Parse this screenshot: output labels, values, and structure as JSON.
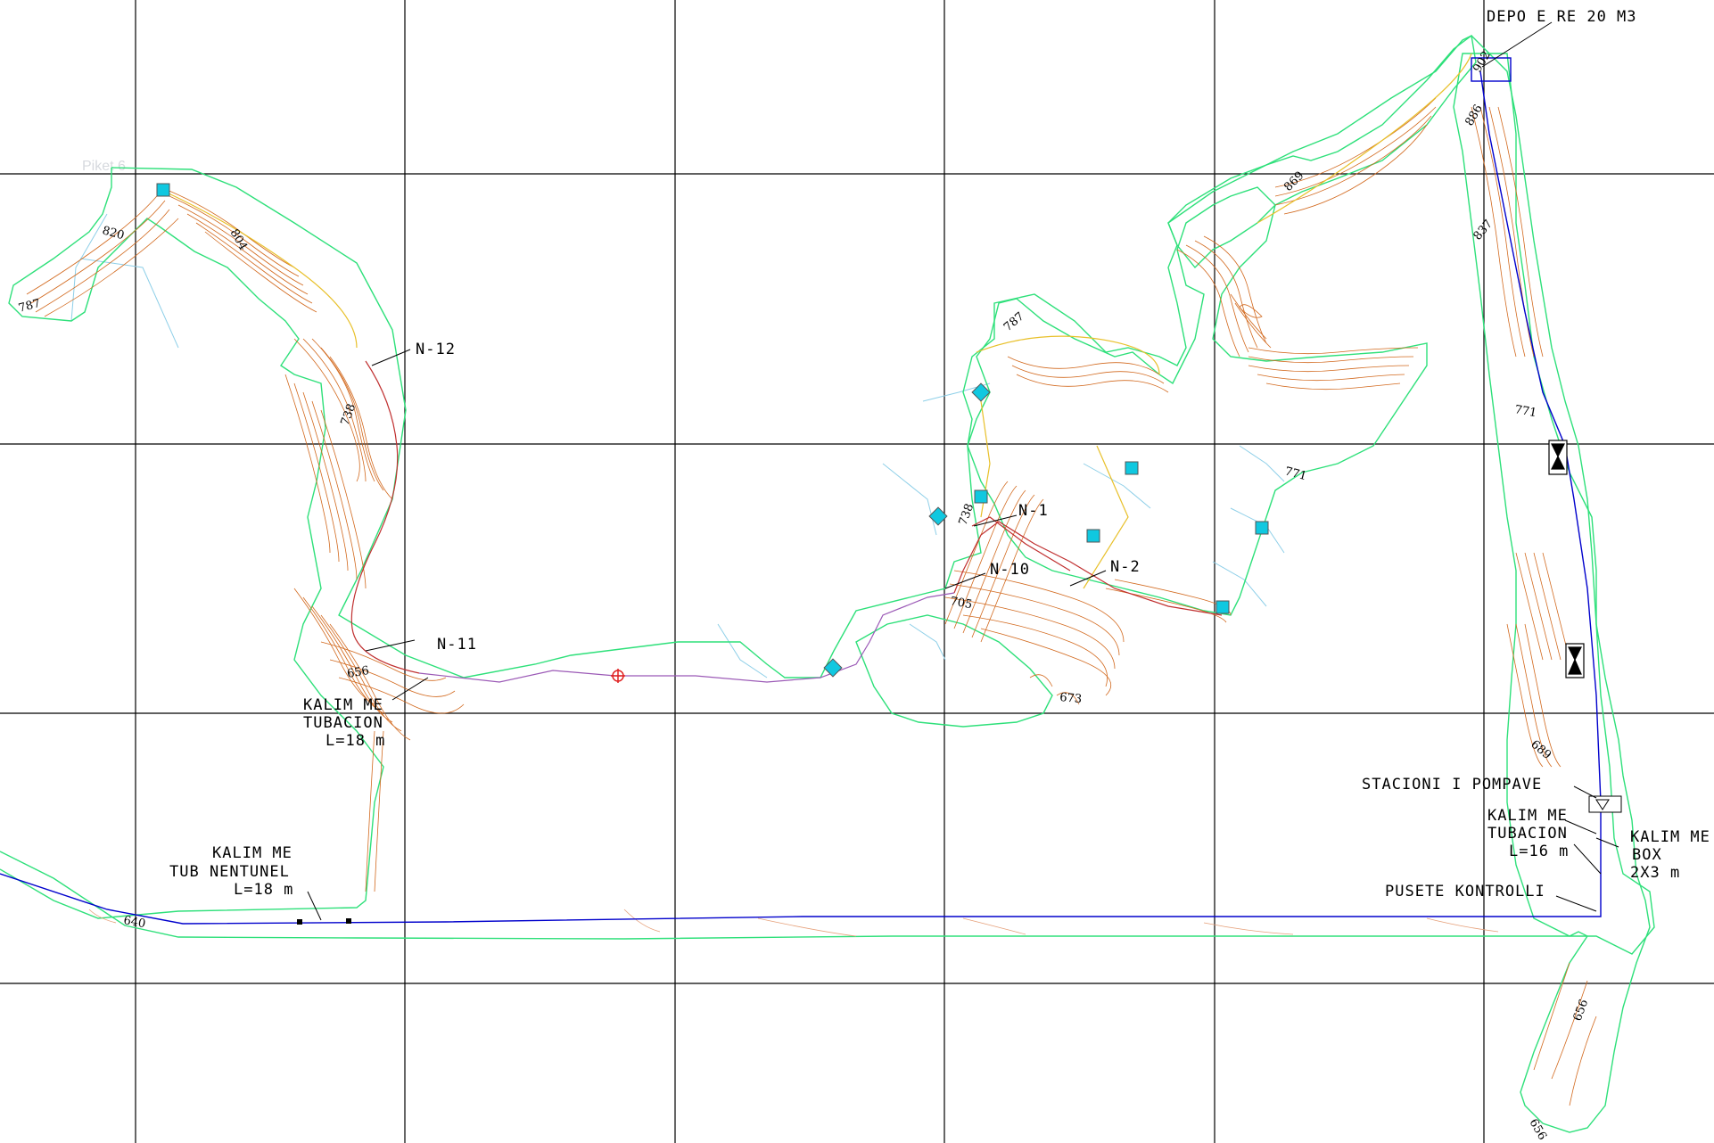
{
  "map": {
    "colors": {
      "background": "#ffffff",
      "grid": "#000000",
      "boundary": "#2ee07a",
      "contour": "#d2691e",
      "contour_light": "#e6a07a",
      "pipe_main": "#0000cc",
      "pipe_branch": "#c03030",
      "pipe_alt": "#9b59b6",
      "path_yellow": "#e8c02a",
      "hint": "#8ecfe8",
      "node": "#10c8e0",
      "marker": "#e02020"
    },
    "ghost_label": "Piket 6",
    "annotations": {
      "depo": "DEPO E RE 20 M3",
      "n12": "N-12",
      "n11": "N-11",
      "n1": "N-1",
      "n10": "N-10",
      "n2": "N-2",
      "kalim_tubacion_left": [
        "KALIM ME",
        "TUBACION",
        "L=18 m"
      ],
      "kalim_tunel": [
        "KALIM ME",
        "TUB NENTUNEL",
        "L=18 m"
      ],
      "stacioni": "STACIONI I POMPAVE",
      "kalim_tubacion_right": [
        "KALIM ME",
        "TUBACION",
        "L=16 m"
      ],
      "kalim_box": [
        "KALIM ME",
        "BOX",
        "2X3 m"
      ],
      "pusete": "PUSETE KONTROLLI"
    },
    "elevations": [
      "820",
      "804",
      "787",
      "738",
      "656",
      "640",
      "787",
      "738",
      "705",
      "673",
      "771",
      "869",
      "902",
      "886",
      "837",
      "771",
      "689",
      "656",
      "656"
    ]
  }
}
